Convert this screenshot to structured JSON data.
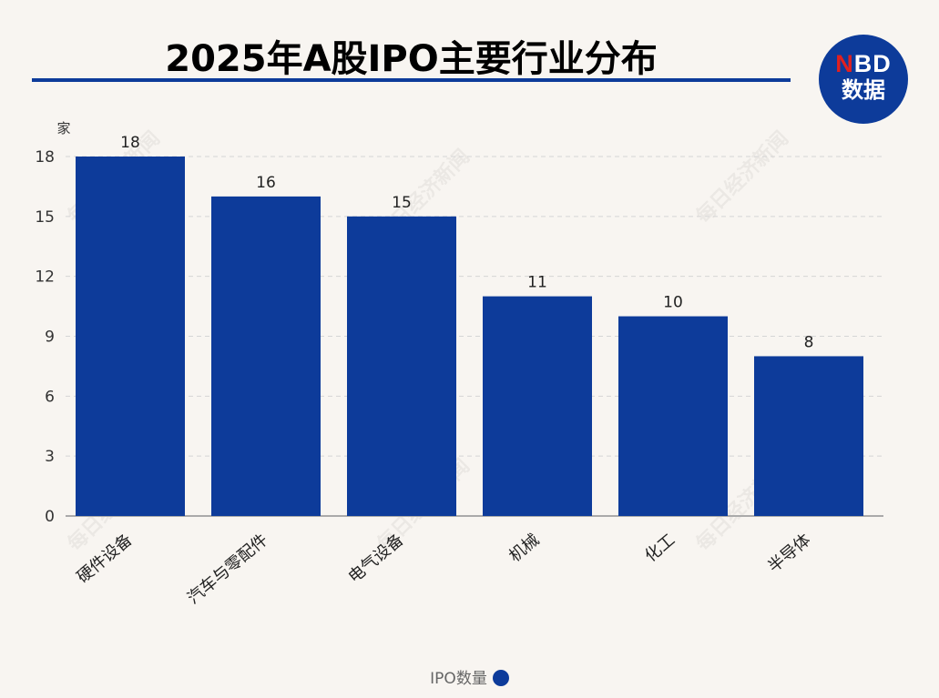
{
  "title": "2025年A股IPO主要行业分布",
  "logo": {
    "brand_red": "N",
    "brand_rest": "BD",
    "text": "数据"
  },
  "watermark": "每日经济新闻",
  "colors": {
    "bar": "#0d3b9a",
    "accent_red": "#e02020",
    "background": "#f8f5f1"
  },
  "chart_data": {
    "type": "bar",
    "title": "2025年A股IPO主要行业分布",
    "ylabel": "家",
    "xlabel": "",
    "categories": [
      "硬件设备",
      "汽车与零配件",
      "电气设备",
      "机械",
      "化工",
      "半导体"
    ],
    "series": [
      {
        "name": "IPO数量",
        "values": [
          18,
          16,
          15,
          11,
          10,
          8
        ]
      }
    ],
    "ylim": [
      0,
      18
    ],
    "yticks": [
      0,
      3,
      6,
      9,
      12,
      15,
      18
    ],
    "grid": true,
    "legend": "bottom",
    "data_labels": true
  }
}
